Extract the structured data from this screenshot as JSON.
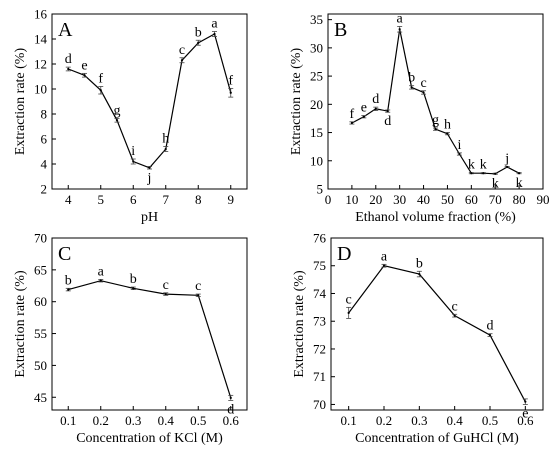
{
  "chart_data": [
    {
      "type": "line",
      "panel_label": "A",
      "xlabel": "pH",
      "ylabel": "Extraction rate (%)",
      "xlim": [
        3.5,
        9.5
      ],
      "ylim": [
        2,
        16
      ],
      "xticks": [
        4,
        5,
        6,
        7,
        8,
        9
      ],
      "yticks": [
        2,
        4,
        6,
        8,
        10,
        12,
        14,
        16
      ],
      "x": [
        4,
        4.5,
        5,
        5.5,
        6,
        6.5,
        7,
        7.5,
        8,
        8.5,
        9
      ],
      "values": [
        11.6,
        11.1,
        9.9,
        7.5,
        4.2,
        3.7,
        5.2,
        12.3,
        13.7,
        14.4,
        9.7
      ],
      "errors": [
        0.15,
        0.15,
        0.3,
        0.15,
        0.2,
        0.1,
        0.2,
        0.2,
        0.2,
        0.2,
        0.35
      ],
      "letters": [
        "d",
        "e",
        "f",
        "g",
        "i",
        "j",
        "h",
        "c",
        "b",
        "a",
        "f"
      ],
      "grid": false
    },
    {
      "type": "line",
      "panel_label": "B",
      "xlabel": "Ethanol volume fraction (%)",
      "ylabel": "Extraction rate (%)",
      "xlim": [
        0,
        90
      ],
      "ylim": [
        5,
        36
      ],
      "xticks": [
        0,
        10,
        20,
        30,
        40,
        50,
        60,
        70,
        80,
        90
      ],
      "yticks": [
        5,
        10,
        15,
        20,
        25,
        30,
        35
      ],
      "x": [
        10,
        15,
        20,
        25,
        30,
        35,
        40,
        45,
        50,
        55,
        60,
        65,
        70,
        75,
        80
      ],
      "values": [
        16.7,
        17.8,
        19.2,
        18.8,
        33.3,
        23.0,
        22.1,
        15.6,
        14.8,
        11.2,
        7.8,
        7.8,
        7.7,
        8.9,
        7.8
      ],
      "errors": [
        0.2,
        0.2,
        0.3,
        0.2,
        0.5,
        0.3,
        0.3,
        0.2,
        0.2,
        0.2,
        0.1,
        0.1,
        0.1,
        0.1,
        0.1
      ],
      "letters": [
        "f",
        "e",
        "d",
        "d",
        "a",
        "b",
        "c",
        "g",
        "h",
        "i",
        "k",
        "k",
        "k",
        "j",
        "k"
      ],
      "grid": false
    },
    {
      "type": "line",
      "panel_label": "C",
      "xlabel": "Concentration of KCl (M)",
      "ylabel": "Extraction rate (%)",
      "xlim": [
        0.05,
        0.65
      ],
      "ylim": [
        43,
        70
      ],
      "xticks": [
        0.1,
        0.2,
        0.3,
        0.4,
        0.5,
        0.6
      ],
      "yticks": [
        45,
        50,
        55,
        60,
        65,
        70
      ],
      "x": [
        0.1,
        0.2,
        0.3,
        0.4,
        0.5,
        0.6
      ],
      "values": [
        61.9,
        63.3,
        62.1,
        61.2,
        61.0,
        44.9
      ],
      "errors": [
        0.2,
        0.2,
        0.2,
        0.2,
        0.2,
        0.4
      ],
      "letters": [
        "b",
        "a",
        "b",
        "c",
        "c",
        "d"
      ],
      "grid": false
    },
    {
      "type": "line",
      "panel_label": "D",
      "xlabel": "Concentration of GuHCl (M)",
      "ylabel": "Extraction rate (%)",
      "xlim": [
        0.05,
        0.65
      ],
      "ylim": [
        69.8,
        76
      ],
      "xticks": [
        0.1,
        0.2,
        0.3,
        0.4,
        0.5,
        0.6
      ],
      "yticks": [
        70,
        71,
        72,
        73,
        74,
        75,
        76
      ],
      "x": [
        0.1,
        0.2,
        0.3,
        0.4,
        0.5,
        0.6
      ],
      "values": [
        73.3,
        75.0,
        74.7,
        73.2,
        72.5,
        70.1
      ],
      "errors": [
        0.2,
        0.05,
        0.1,
        0.05,
        0.05,
        0.1
      ],
      "letters": [
        "c",
        "a",
        "b",
        "c",
        "d",
        "e"
      ],
      "grid": false
    }
  ]
}
